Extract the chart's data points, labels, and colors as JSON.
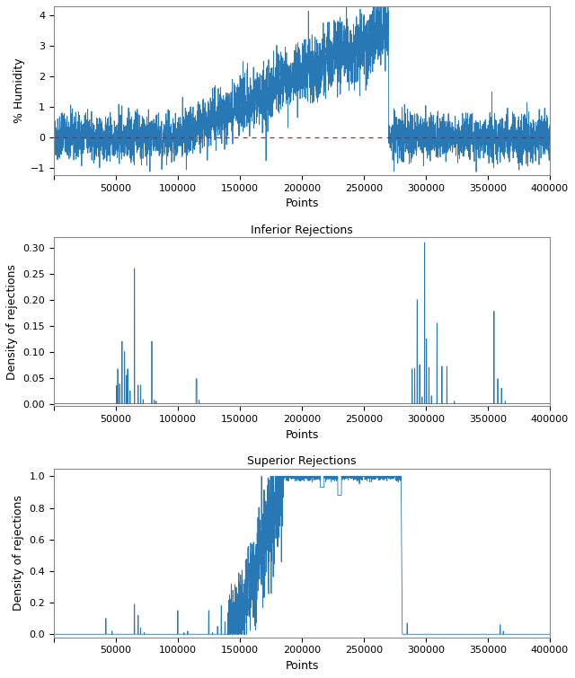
{
  "title2": "Inferior Rejections",
  "title3": "Superior Rejections",
  "ylabel1": "% Humidity",
  "ylabel2": "Density of rejections",
  "ylabel3": "Density of rejections",
  "xlabel": "Points",
  "xlim": [
    0,
    400000
  ],
  "ylim1": [
    -1.25,
    4.3
  ],
  "ylim2": [
    -0.005,
    0.32
  ],
  "ylim3": [
    -0.02,
    1.05
  ],
  "line_color": "#2878b5",
  "ref_line_color": "red",
  "n_points": 400000,
  "background_color": "#ffffff"
}
